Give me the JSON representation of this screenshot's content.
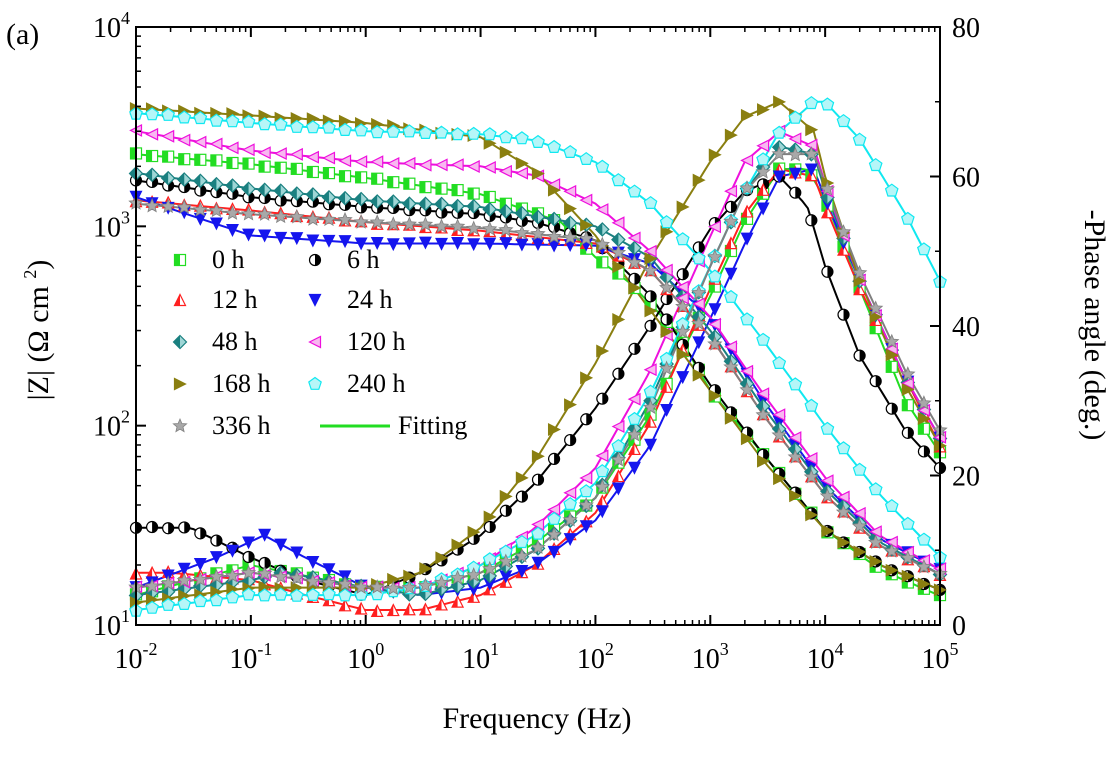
{
  "panel_label": "(a)",
  "legend": {
    "entries": [
      "0 h",
      "6 h",
      "12 h",
      "24 h",
      "48 h",
      "120 h",
      "168 h",
      "240 h",
      "336 h",
      "Fitting"
    ]
  },
  "chart_data": {
    "type": "scatter",
    "title": "",
    "xlabel": "Frequency (Hz)",
    "ylabel_left": "|Z| (Ω cm²)",
    "ylabel_right": "-Phase angle (deg.)",
    "x_scale": "log",
    "y_left_scale": "log",
    "xlim": [
      0.01,
      100000
    ],
    "ylim_left": [
      10,
      10000
    ],
    "ylim_right": [
      0,
      80
    ],
    "x_ticks": [
      "10^-2",
      "10^-1",
      "10^0",
      "10^1",
      "10^2",
      "10^3",
      "10^4",
      "10^5"
    ],
    "y_left_ticks": [
      "10^1",
      "10^2",
      "10^3",
      "10^4"
    ],
    "y_right_ticks": [
      "0",
      "20",
      "40",
      "60",
      "80"
    ],
    "legend_position": "left-center",
    "grid": false,
    "series": [
      {
        "name": "0 h",
        "color": "#22dd22",
        "marker": "square-half",
        "impedance": [
          [
            0.01,
            2300
          ],
          [
            0.1,
            2050
          ],
          [
            1,
            1750
          ],
          [
            10,
            1450
          ],
          [
            50,
            1050
          ],
          [
            100,
            700
          ],
          [
            200,
            520
          ],
          [
            500,
            300
          ],
          [
            1000,
            150
          ],
          [
            3000,
            70
          ],
          [
            10000,
            30
          ],
          [
            30000,
            19
          ],
          [
            100000,
            14
          ]
        ],
        "phase": [
          [
            0.01,
            4
          ],
          [
            0.1,
            8
          ],
          [
            1,
            5
          ],
          [
            3,
            5
          ],
          [
            10,
            7
          ],
          [
            30,
            11
          ],
          [
            100,
            17
          ],
          [
            300,
            28
          ],
          [
            1000,
            44
          ],
          [
            2000,
            54
          ],
          [
            4000,
            61
          ],
          [
            7000,
            61
          ],
          [
            10000,
            57
          ],
          [
            20000,
            45
          ],
          [
            50000,
            30
          ],
          [
            100000,
            23
          ]
        ]
      },
      {
        "name": "6 h",
        "color": "#000000",
        "marker": "circle-half",
        "impedance": [
          [
            0.01,
            1700
          ],
          [
            0.1,
            1400
          ],
          [
            1,
            1250
          ],
          [
            10,
            1150
          ],
          [
            30,
            1050
          ],
          [
            100,
            850
          ],
          [
            300,
            450
          ],
          [
            1000,
            160
          ],
          [
            3000,
            70
          ],
          [
            10000,
            30
          ],
          [
            30000,
            20
          ],
          [
            100000,
            15
          ]
        ],
        "phase": [
          [
            0.01,
            13
          ],
          [
            0.03,
            13
          ],
          [
            0.1,
            9
          ],
          [
            0.3,
            6
          ],
          [
            1,
            4
          ],
          [
            3,
            7
          ],
          [
            10,
            12
          ],
          [
            30,
            19
          ],
          [
            100,
            29
          ],
          [
            300,
            40
          ],
          [
            1000,
            53
          ],
          [
            2000,
            58
          ],
          [
            4000,
            60
          ],
          [
            7000,
            56
          ],
          [
            10000,
            48
          ],
          [
            20000,
            36
          ],
          [
            50000,
            26
          ],
          [
            100000,
            21
          ]
        ]
      },
      {
        "name": "12 h",
        "color": "#ff2020",
        "marker": "triangle-up",
        "impedance": [
          [
            0.01,
            1350
          ],
          [
            0.1,
            1200
          ],
          [
            1,
            1050
          ],
          [
            10,
            950
          ],
          [
            100,
            820
          ],
          [
            300,
            600
          ],
          [
            1000,
            280
          ],
          [
            3000,
            110
          ],
          [
            10000,
            45
          ],
          [
            30000,
            25
          ],
          [
            100000,
            18
          ]
        ],
        "phase": [
          [
            0.01,
            7
          ],
          [
            0.02,
            7
          ],
          [
            0.1,
            6
          ],
          [
            0.3,
            4
          ],
          [
            1,
            2
          ],
          [
            3,
            2
          ],
          [
            10,
            4
          ],
          [
            30,
            8
          ],
          [
            100,
            15
          ],
          [
            300,
            27
          ],
          [
            1000,
            45
          ],
          [
            2000,
            55
          ],
          [
            4000,
            61
          ],
          [
            8000,
            60
          ],
          [
            10000,
            56
          ],
          [
            20000,
            45
          ],
          [
            50000,
            33
          ],
          [
            100000,
            24
          ]
        ]
      },
      {
        "name": "24 h",
        "color": "#1515ee",
        "marker": "triangle-down",
        "impedance": [
          [
            0.01,
            1400
          ],
          [
            0.1,
            900
          ],
          [
            1,
            820
          ],
          [
            10,
            820
          ],
          [
            100,
            800
          ],
          [
            300,
            650
          ],
          [
            1000,
            350
          ],
          [
            3000,
            130
          ],
          [
            10000,
            50
          ],
          [
            30000,
            27
          ],
          [
            100000,
            19
          ]
        ],
        "phase": [
          [
            0.01,
            5
          ],
          [
            0.05,
            9
          ],
          [
            0.13,
            12
          ],
          [
            0.3,
            9
          ],
          [
            1,
            5
          ],
          [
            3,
            4
          ],
          [
            10,
            5
          ],
          [
            30,
            8
          ],
          [
            100,
            14
          ],
          [
            300,
            24
          ],
          [
            1000,
            41
          ],
          [
            2000,
            51
          ],
          [
            4000,
            60
          ],
          [
            8000,
            61
          ],
          [
            10000,
            57
          ],
          [
            20000,
            46
          ],
          [
            50000,
            33
          ],
          [
            100000,
            25
          ]
        ]
      },
      {
        "name": "48 h",
        "color": "#1a8080",
        "marker": "diamond-half",
        "impedance": [
          [
            0.01,
            1850
          ],
          [
            0.1,
            1550
          ],
          [
            1,
            1350
          ],
          [
            10,
            1250
          ],
          [
            100,
            1000
          ],
          [
            300,
            700
          ],
          [
            1000,
            300
          ],
          [
            3000,
            120
          ],
          [
            10000,
            48
          ],
          [
            30000,
            26
          ],
          [
            100000,
            18
          ]
        ],
        "phase": [
          [
            0.01,
            4
          ],
          [
            0.1,
            6
          ],
          [
            0.2,
            7
          ],
          [
            1,
            5
          ],
          [
            3,
            4
          ],
          [
            10,
            6
          ],
          [
            30,
            10
          ],
          [
            100,
            17
          ],
          [
            300,
            30
          ],
          [
            1000,
            48
          ],
          [
            2000,
            58
          ],
          [
            4000,
            64
          ],
          [
            8000,
            63
          ],
          [
            10000,
            58
          ],
          [
            20000,
            46
          ],
          [
            50000,
            33
          ],
          [
            100000,
            25
          ]
        ]
      },
      {
        "name": "120 h",
        "color": "#ee10dd",
        "marker": "triangle-left",
        "impedance": [
          [
            0.01,
            3000
          ],
          [
            0.1,
            2400
          ],
          [
            1,
            2100
          ],
          [
            10,
            2000
          ],
          [
            30,
            1800
          ],
          [
            100,
            1300
          ],
          [
            300,
            750
          ],
          [
            1000,
            350
          ],
          [
            3000,
            140
          ],
          [
            10000,
            55
          ],
          [
            30000,
            28
          ],
          [
            100000,
            19
          ]
        ],
        "phase": [
          [
            0.01,
            5
          ],
          [
            0.1,
            7
          ],
          [
            1,
            5
          ],
          [
            3,
            5
          ],
          [
            10,
            8
          ],
          [
            30,
            13
          ],
          [
            100,
            21
          ],
          [
            300,
            34
          ],
          [
            1000,
            52
          ],
          [
            2000,
            62
          ],
          [
            4000,
            66
          ],
          [
            8000,
            64
          ],
          [
            10000,
            59
          ],
          [
            20000,
            46
          ],
          [
            50000,
            33
          ],
          [
            100000,
            25
          ]
        ]
      },
      {
        "name": "168 h",
        "color": "#8a7f10",
        "marker": "triangle-right",
        "impedance": [
          [
            0.01,
            3900
          ],
          [
            0.1,
            3600
          ],
          [
            1,
            3300
          ],
          [
            10,
            2800
          ],
          [
            30,
            1900
          ],
          [
            100,
            900
          ],
          [
            300,
            380
          ],
          [
            1000,
            150
          ],
          [
            3000,
            65
          ],
          [
            10000,
            30
          ],
          [
            30000,
            20
          ],
          [
            100000,
            15
          ]
        ],
        "phase": [
          [
            0.01,
            3
          ],
          [
            0.1,
            5
          ],
          [
            1,
            5
          ],
          [
            3,
            7
          ],
          [
            10,
            13
          ],
          [
            30,
            22
          ],
          [
            100,
            35
          ],
          [
            300,
            49
          ],
          [
            1000,
            62
          ],
          [
            2000,
            68
          ],
          [
            4000,
            70
          ],
          [
            8000,
            66
          ],
          [
            10000,
            60
          ],
          [
            20000,
            46
          ],
          [
            50000,
            32
          ],
          [
            100000,
            24
          ]
        ]
      },
      {
        "name": "240 h",
        "color": "#11e8f0",
        "marker": "pentagon-half",
        "impedance": [
          [
            0.01,
            3700
          ],
          [
            0.1,
            3300
          ],
          [
            1,
            3000
          ],
          [
            10,
            2900
          ],
          [
            30,
            2700
          ],
          [
            100,
            2100
          ],
          [
            300,
            1300
          ],
          [
            1000,
            600
          ],
          [
            3000,
            260
          ],
          [
            10000,
            100
          ],
          [
            30000,
            45
          ],
          [
            100000,
            22
          ]
        ],
        "phase": [
          [
            0.01,
            2
          ],
          [
            0.1,
            4
          ],
          [
            1,
            4
          ],
          [
            3,
            5
          ],
          [
            10,
            8
          ],
          [
            30,
            12
          ],
          [
            100,
            19
          ],
          [
            300,
            31
          ],
          [
            1000,
            48
          ],
          [
            2000,
            58
          ],
          [
            4000,
            66
          ],
          [
            8000,
            70
          ],
          [
            10000,
            70
          ],
          [
            20000,
            65
          ],
          [
            50000,
            55
          ],
          [
            100000,
            46
          ]
        ]
      },
      {
        "name": "336 h",
        "color": "#808080",
        "marker": "star",
        "impedance": [
          [
            0.01,
            1300
          ],
          [
            0.1,
            1150
          ],
          [
            1,
            1050
          ],
          [
            10,
            980
          ],
          [
            100,
            850
          ],
          [
            300,
            600
          ],
          [
            1000,
            280
          ],
          [
            3000,
            110
          ],
          [
            10000,
            45
          ],
          [
            30000,
            25
          ],
          [
            100000,
            18
          ]
        ],
        "phase": [
          [
            0.01,
            5
          ],
          [
            0.1,
            7
          ],
          [
            1,
            5
          ],
          [
            3,
            5
          ],
          [
            10,
            7
          ],
          [
            30,
            10
          ],
          [
            100,
            17
          ],
          [
            300,
            29
          ],
          [
            1000,
            48
          ],
          [
            2000,
            58
          ],
          [
            4000,
            63
          ],
          [
            8000,
            63
          ],
          [
            10000,
            59
          ],
          [
            20000,
            47
          ],
          [
            50000,
            34
          ],
          [
            100000,
            26
          ]
        ]
      }
    ]
  }
}
